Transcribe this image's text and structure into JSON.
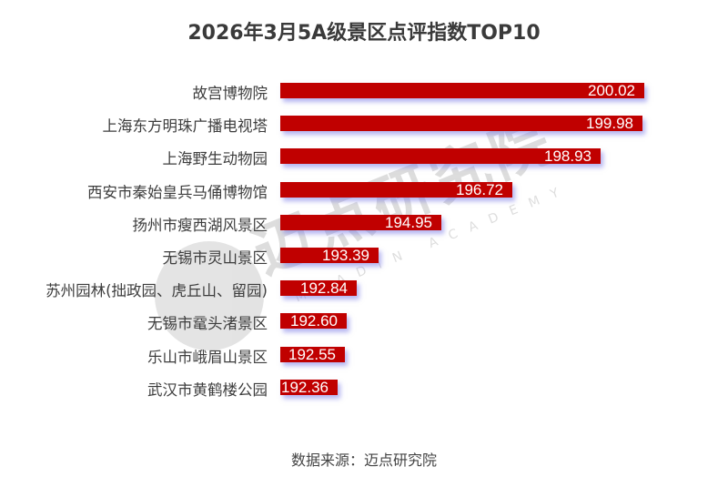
{
  "title": "2026年3月5A级景区点评指数TOP10",
  "source": "数据来源：迈点研究院",
  "watermark": {
    "main": "迈点研究院",
    "sub": "MEADIN ACADEMY"
  },
  "colors": {
    "bar": "#c00000",
    "bar_shadow": "#7878e6",
    "title": "#3a3a3a",
    "value_text": "#ffffff"
  },
  "chart_data": {
    "type": "bar",
    "orientation": "horizontal",
    "title": "2026年3月5A级景区点评指数TOP10",
    "xlabel": "",
    "ylabel": "",
    "grid": false,
    "legend": null,
    "data_labels": true,
    "categories": [
      "故宫博物院",
      "上海东方明珠广播电视塔",
      "上海野生动物园",
      "西安市秦始皇兵马俑博物馆",
      "扬州市瘦西湖风景区",
      "无锡市灵山景区",
      "苏州园林(拙政园、虎丘山、留园)",
      "无锡市鼋头渚景区",
      "乐山市峨眉山景区",
      "武汉市黄鹤楼公园"
    ],
    "values": [
      200.02,
      199.98,
      198.93,
      196.72,
      194.95,
      193.39,
      192.84,
      192.6,
      192.55,
      192.36
    ],
    "value_labels": [
      "200.02",
      "199.98",
      "198.93",
      "196.72",
      "194.95",
      "193.39",
      "192.84",
      "192.60",
      "192.55",
      "192.36"
    ],
    "annotations": [
      "数据来源：迈点研究院"
    ]
  }
}
